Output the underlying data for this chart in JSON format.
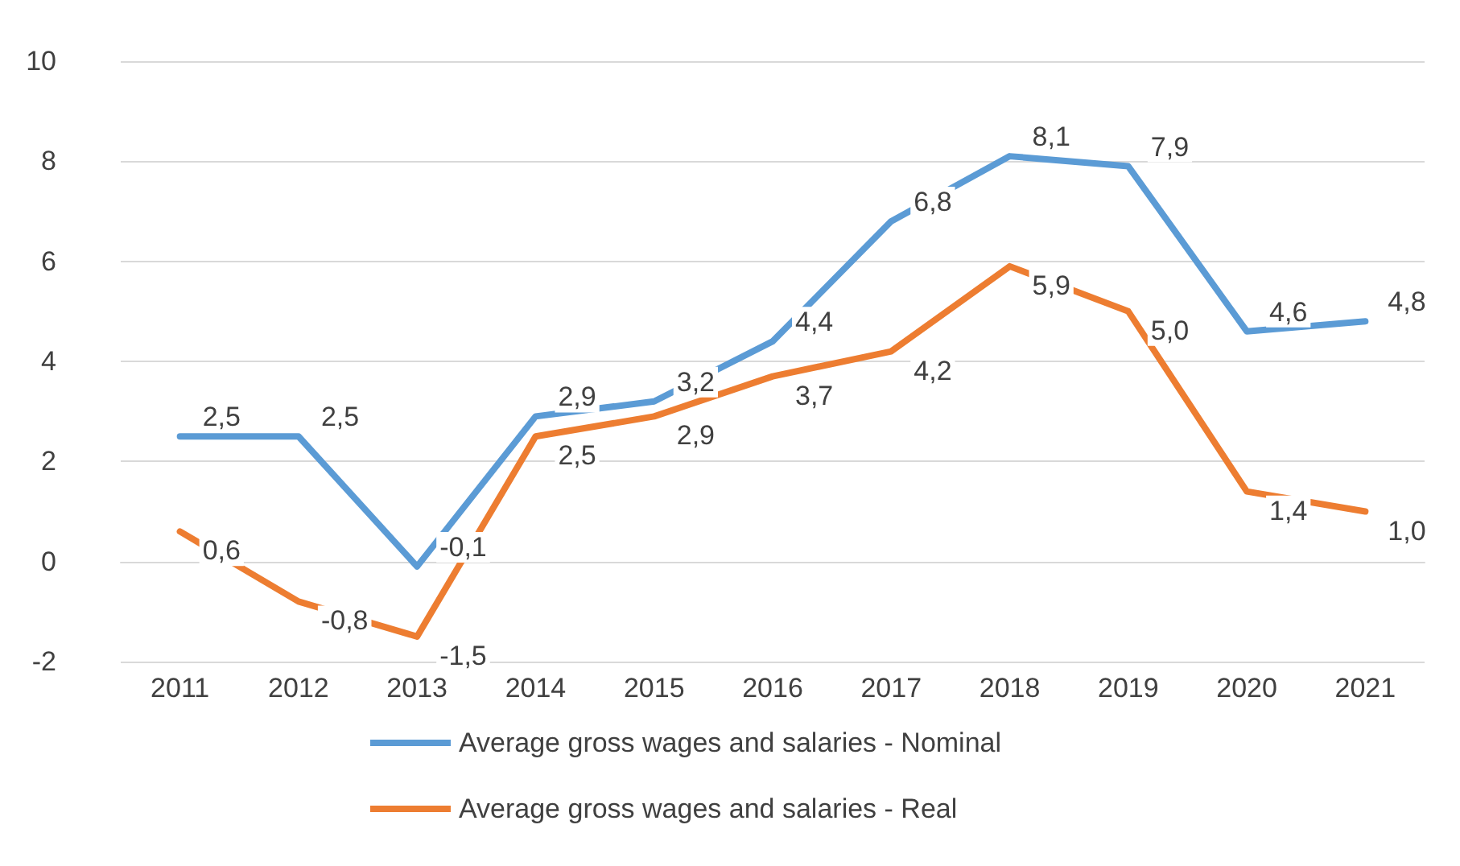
{
  "chart_data": {
    "type": "line",
    "categories": [
      "2011",
      "2012",
      "2013",
      "2014",
      "2015",
      "2016",
      "2017",
      "2018",
      "2019",
      "2020",
      "2021"
    ],
    "series": [
      {
        "name": "Average gross wages and salaries - Nominal",
        "color": "#5b9bd5",
        "values": [
          2.5,
          2.5,
          -0.1,
          2.9,
          3.2,
          4.4,
          6.8,
          8.1,
          7.9,
          4.6,
          4.8
        ],
        "value_labels": [
          "2,5",
          "2,5",
          "-0,1",
          "2,9",
          "3,2",
          "4,4",
          "6,8",
          "8,1",
          "7,9",
          "4,6",
          "4,8"
        ]
      },
      {
        "name": "Average gross wages and salaries - Real",
        "color": "#ed7d31",
        "values": [
          0.6,
          -0.8,
          -1.5,
          2.5,
          2.9,
          3.7,
          4.2,
          5.9,
          5.0,
          1.4,
          1.0
        ],
        "value_labels": [
          "0,6",
          "-0,8",
          "-1,5",
          "2,5",
          "2,9",
          "3,7",
          "4,2",
          "5,9",
          "5,0",
          "1,4",
          "1,0"
        ]
      }
    ],
    "ylim": [
      -2,
      10
    ],
    "yticks": [
      -2,
      0,
      2,
      4,
      6,
      8,
      10
    ],
    "grid": "y",
    "legend": "bottom",
    "marker": "none",
    "line_style": "solid"
  }
}
